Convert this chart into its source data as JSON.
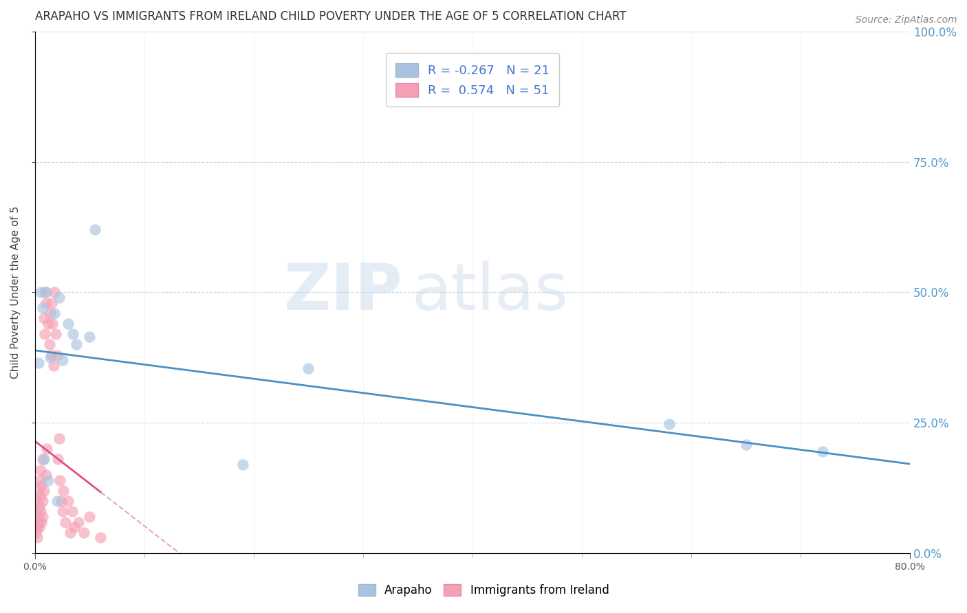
{
  "title": "ARAPAHO VS IMMIGRANTS FROM IRELAND CHILD POVERTY UNDER THE AGE OF 5 CORRELATION CHART",
  "source": "Source: ZipAtlas.com",
  "ylabel": "Child Poverty Under the Age of 5",
  "xlim": [
    0.0,
    0.8
  ],
  "ylim": [
    0.0,
    1.0
  ],
  "yticks": [
    0.0,
    0.25,
    0.5,
    0.75,
    1.0
  ],
  "xticks_major": [
    0.0,
    0.8
  ],
  "xticks_minor": [
    0.1,
    0.2,
    0.3,
    0.4,
    0.5,
    0.6,
    0.7
  ],
  "watermark_zip": "ZIP",
  "watermark_atlas": "atlas",
  "legend1_label": "Arapaho",
  "legend2_label": "Immigrants from Ireland",
  "legend_R1": "R = -0.267",
  "legend_N1": "N = 21",
  "legend_R2": "R =  0.574",
  "legend_N2": "N = 51",
  "color_arapaho": "#a8c4e0",
  "color_ireland": "#f5a0b5",
  "color_arapaho_line": "#4a90c4",
  "color_ireland_line": "#e05080",
  "color_ireland_dashed": "#e8a8b8",
  "arapaho_x": [
    0.003,
    0.005,
    0.007,
    0.01,
    0.014,
    0.018,
    0.022,
    0.025,
    0.03,
    0.035,
    0.05,
    0.055,
    0.19,
    0.25,
    0.58,
    0.65,
    0.72,
    0.008,
    0.012,
    0.02,
    0.038
  ],
  "arapaho_y": [
    0.365,
    0.5,
    0.47,
    0.5,
    0.375,
    0.46,
    0.49,
    0.37,
    0.44,
    0.42,
    0.415,
    0.62,
    0.17,
    0.355,
    0.248,
    0.208,
    0.195,
    0.18,
    0.14,
    0.1,
    0.4
  ],
  "ireland_x": [
    0.001,
    0.001,
    0.002,
    0.002,
    0.002,
    0.003,
    0.003,
    0.003,
    0.004,
    0.004,
    0.004,
    0.005,
    0.005,
    0.005,
    0.006,
    0.006,
    0.007,
    0.007,
    0.007,
    0.008,
    0.008,
    0.009,
    0.009,
    0.01,
    0.01,
    0.011,
    0.012,
    0.013,
    0.014,
    0.015,
    0.015,
    0.016,
    0.017,
    0.018,
    0.019,
    0.02,
    0.021,
    0.022,
    0.023,
    0.024,
    0.025,
    0.026,
    0.028,
    0.03,
    0.032,
    0.034,
    0.036,
    0.04,
    0.045,
    0.05,
    0.06
  ],
  "ireland_y": [
    0.04,
    0.08,
    0.05,
    0.1,
    0.03,
    0.07,
    0.12,
    0.06,
    0.09,
    0.14,
    0.05,
    0.11,
    0.08,
    0.16,
    0.06,
    0.13,
    0.1,
    0.18,
    0.07,
    0.45,
    0.12,
    0.5,
    0.42,
    0.48,
    0.15,
    0.2,
    0.44,
    0.4,
    0.46,
    0.48,
    0.38,
    0.44,
    0.36,
    0.5,
    0.42,
    0.38,
    0.18,
    0.22,
    0.14,
    0.1,
    0.08,
    0.12,
    0.06,
    0.1,
    0.04,
    0.08,
    0.05,
    0.06,
    0.04,
    0.07,
    0.03
  ]
}
